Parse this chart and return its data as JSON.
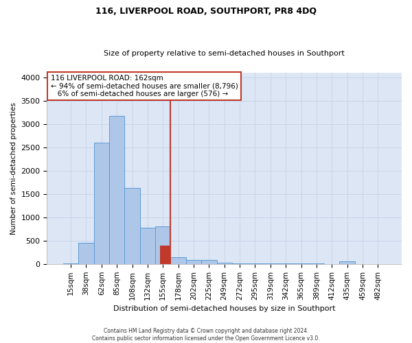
{
  "title": "116, LIVERPOOL ROAD, SOUTHPORT, PR8 4DQ",
  "subtitle": "Size of property relative to semi-detached houses in Southport",
  "xlabel": "Distribution of semi-detached houses by size in Southport",
  "ylabel": "Number of semi-detached properties",
  "footer_line1": "Contains HM Land Registry data © Crown copyright and database right 2024.",
  "footer_line2": "Contains public sector information licensed under the Open Government Licence v3.0.",
  "bin_labels": [
    "15sqm",
    "38sqm",
    "62sqm",
    "85sqm",
    "108sqm",
    "132sqm",
    "155sqm",
    "178sqm",
    "202sqm",
    "225sqm",
    "249sqm",
    "272sqm",
    "295sqm",
    "319sqm",
    "342sqm",
    "365sqm",
    "389sqm",
    "412sqm",
    "435sqm",
    "459sqm",
    "482sqm"
  ],
  "bar_values": [
    10,
    450,
    2600,
    3175,
    1625,
    775,
    800,
    150,
    85,
    85,
    30,
    15,
    15,
    5,
    5,
    5,
    5,
    0,
    55,
    0,
    0
  ],
  "bar_color": "#aec6e8",
  "bar_edge_color": "#5b9bd5",
  "highlight_bar_index": 6,
  "highlight_bar_split": 400,
  "highlight_bar_color": "#c0392b",
  "vline_color": "#c0392b",
  "vline_position": 6.5,
  "ylim": [
    0,
    4100
  ],
  "yticks": [
    0,
    500,
    1000,
    1500,
    2000,
    2500,
    3000,
    3500,
    4000
  ],
  "grid_color": "#c8d4e8",
  "background_color": "#dce6f5",
  "annotation_text_line1": "116 LIVERPOOL ROAD: 162sqm",
  "annotation_text_line2": "← 94% of semi-detached houses are smaller (8,796)",
  "annotation_text_line3": "   6% of semi-detached houses are larger (576) →",
  "annotation_box_color": "white",
  "annotation_box_edge": "#c0392b",
  "title_fontsize": 9,
  "subtitle_fontsize": 8
}
